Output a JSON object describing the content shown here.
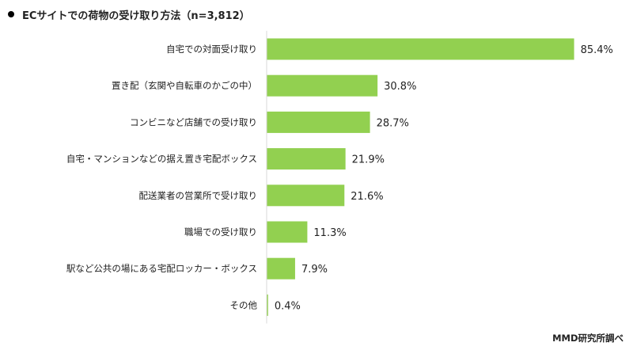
{
  "chart_data": {
    "type": "bar",
    "orientation": "horizontal",
    "title": "ECサイトでの荷物の受け取り方法（n=3,812）",
    "categories": [
      "自宅での対面受け取り",
      "置き配（玄関や自転車のかごの中）",
      "コンビニなど店舗での受け取り",
      "自宅・マンションなどの据え置き宅配ボックス",
      "配送業者の営業所で受け取り",
      "職場での受け取り",
      "駅など公共の場にある宅配ロッカー・ボックス",
      "その他"
    ],
    "values": [
      85.4,
      30.8,
      28.7,
      21.9,
      21.6,
      11.3,
      7.9,
      0.4
    ],
    "value_labels": [
      "85.4%",
      "30.8%",
      "28.7%",
      "21.9%",
      "21.6%",
      "11.3%",
      "7.9%",
      "0.4%"
    ],
    "xlim": [
      0,
      100
    ],
    "unit": "%",
    "bar_color": "#92d050",
    "grid": false,
    "legend": "none",
    "credit": "MMD研究所調べ"
  }
}
